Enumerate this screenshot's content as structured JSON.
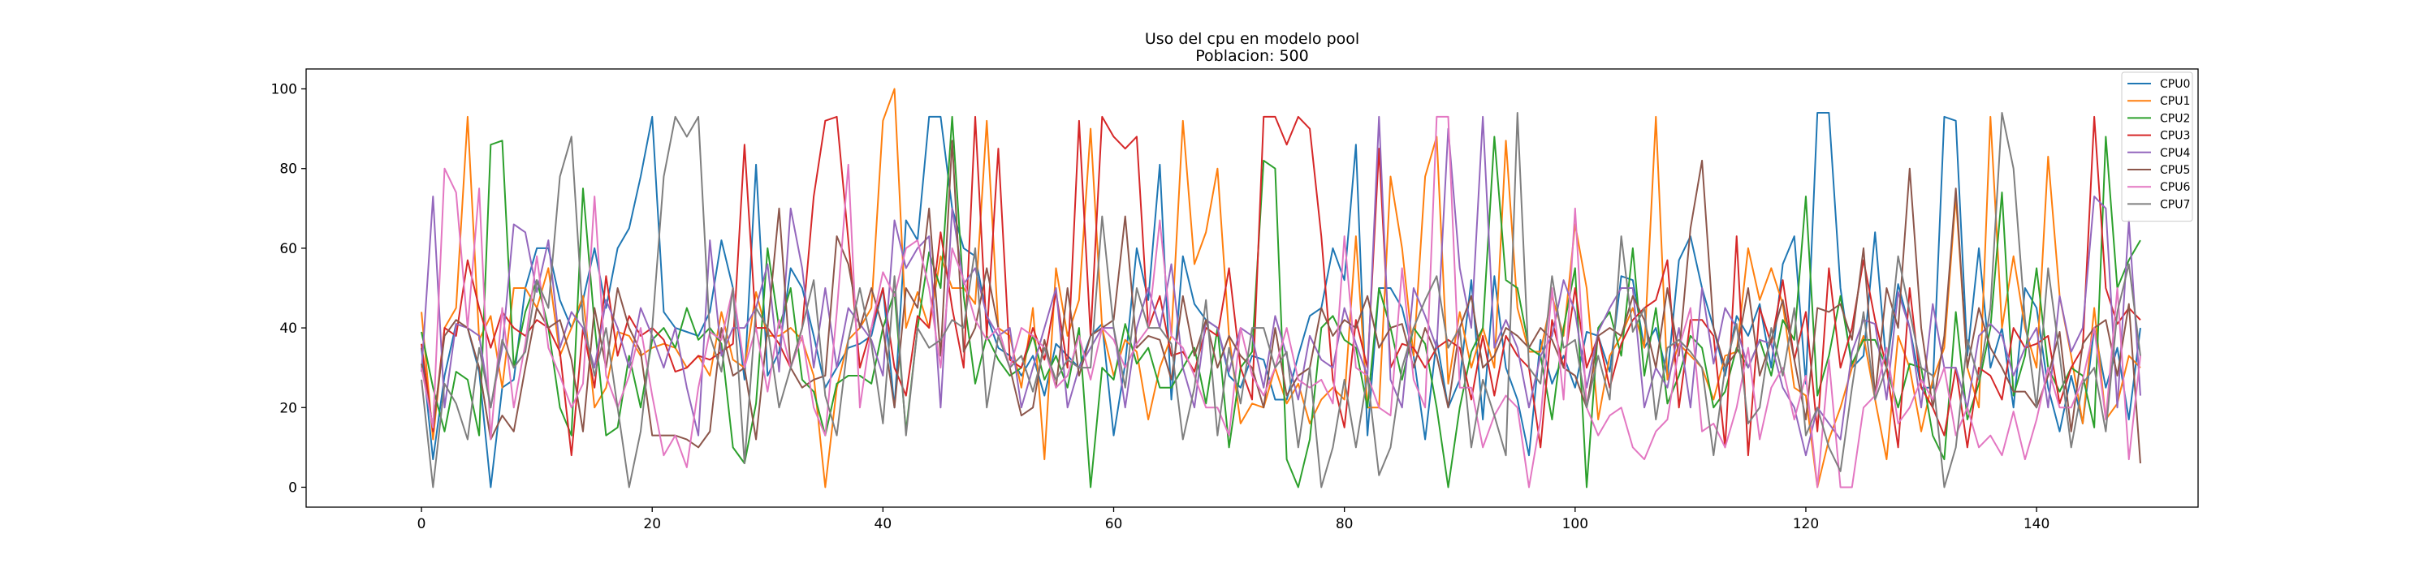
{
  "chart_data": {
    "type": "line",
    "title": "Uso del cpu en modelo pool",
    "subtitle": "Poblacion: 500",
    "xlabel": "",
    "ylabel": "",
    "xlim": [
      -10,
      154
    ],
    "ylim": [
      -5,
      105
    ],
    "xticks": [
      0,
      20,
      40,
      60,
      80,
      100,
      120,
      140
    ],
    "yticks": [
      0,
      20,
      40,
      60,
      80,
      100
    ],
    "grid": false,
    "legend_position": "top-right",
    "series": [
      {
        "name": "CPU0",
        "color": "#1f77b4",
        "values": [
          35,
          7,
          28,
          41,
          40,
          29,
          0,
          25,
          27,
          50,
          60,
          60,
          47,
          40,
          47,
          60,
          45,
          60,
          65,
          78,
          93,
          44,
          40,
          39,
          38,
          44,
          62,
          50,
          27,
          81,
          28,
          34,
          55,
          50,
          38,
          25,
          30,
          35,
          36,
          38,
          50,
          20,
          67,
          62,
          93,
          93,
          70,
          60,
          58,
          43,
          35,
          33,
          28,
          33,
          23,
          36,
          33,
          30,
          38,
          41,
          13,
          31,
          60,
          47,
          81,
          22,
          58,
          46,
          42,
          40,
          28,
          25,
          33,
          32,
          22,
          22,
          33,
          43,
          45,
          60,
          52,
          86,
          13,
          50,
          50,
          45,
          33,
          12,
          37,
          20,
          27,
          52,
          17,
          53,
          30,
          22,
          8,
          37,
          26,
          33,
          25,
          39,
          38,
          29,
          53,
          52,
          35,
          40,
          28,
          57,
          63,
          50,
          40,
          28,
          43,
          38,
          46,
          30,
          56,
          63,
          26,
          94,
          94,
          50,
          30,
          33,
          64,
          30,
          51,
          40,
          25,
          25,
          93,
          92,
          33,
          60,
          30,
          40,
          20,
          50,
          45,
          25,
          14,
          28,
          16,
          40,
          25,
          35,
          17,
          40
        ]
      },
      {
        "name": "CPU1",
        "color": "#ff7f0e",
        "values": [
          44,
          12,
          40,
          45,
          93,
          37,
          43,
          25,
          50,
          50,
          45,
          55,
          33,
          40,
          48,
          20,
          25,
          39,
          38,
          33,
          35,
          36,
          35,
          30,
          33,
          28,
          44,
          32,
          30,
          49,
          38,
          38,
          40,
          37,
          28,
          0,
          25,
          37,
          40,
          45,
          92,
          100,
          40,
          49,
          40,
          58,
          50,
          50,
          46,
          92,
          40,
          38,
          25,
          45,
          7,
          55,
          38,
          47,
          90,
          40,
          28,
          37,
          34,
          17,
          30,
          38,
          92,
          56,
          64,
          80,
          38,
          16,
          21,
          20,
          30,
          21,
          26,
          16,
          22,
          25,
          22,
          63,
          20,
          20,
          78,
          60,
          33,
          78,
          88,
          26,
          44,
          30,
          40,
          30,
          87,
          45,
          34,
          34,
          48,
          38,
          66,
          50,
          17,
          33,
          38,
          45,
          35,
          93,
          27,
          36,
          33,
          30,
          22,
          33,
          34,
          60,
          47,
          55,
          46,
          25,
          23,
          0,
          12,
          20,
          30,
          38,
          22,
          7,
          38,
          30,
          14,
          27,
          35,
          73,
          30,
          20,
          93,
          40,
          58,
          40,
          30,
          83,
          48,
          33,
          16,
          45,
          17,
          21,
          33,
          30
        ]
      },
      {
        "name": "CPU2",
        "color": "#2ca02c",
        "values": [
          39,
          25,
          14,
          29,
          27,
          13,
          86,
          87,
          30,
          44,
          52,
          40,
          20,
          13,
          75,
          41,
          13,
          15,
          33,
          20,
          37,
          40,
          35,
          45,
          37,
          40,
          36,
          10,
          6,
          21,
          60,
          40,
          50,
          27,
          24,
          13,
          26,
          28,
          28,
          26,
          40,
          49,
          14,
          40,
          59,
          50,
          93,
          48,
          26,
          38,
          32,
          28,
          30,
          38,
          27,
          33,
          25,
          40,
          0,
          30,
          27,
          41,
          31,
          35,
          25,
          25,
          30,
          35,
          21,
          40,
          10,
          30,
          34,
          82,
          80,
          7,
          0,
          12,
          40,
          43,
          37,
          35,
          20,
          50,
          40,
          27,
          40,
          36,
          20,
          0,
          20,
          34,
          40,
          88,
          52,
          50,
          35,
          33,
          17,
          40,
          55,
          0,
          40,
          44,
          33,
          60,
          28,
          45,
          21,
          28,
          38,
          35,
          20,
          24,
          35,
          30,
          37,
          28,
          42,
          37,
          73,
          23,
          33,
          48,
          31,
          37,
          37,
          30,
          20,
          31,
          30,
          13,
          7,
          44,
          17,
          26,
          40,
          74,
          23,
          33,
          55,
          30,
          24,
          30,
          28,
          15,
          88,
          50,
          57,
          62
        ]
      },
      {
        "name": "CPU3",
        "color": "#d62728",
        "values": [
          36,
          14,
          40,
          38,
          57,
          45,
          35,
          44,
          40,
          38,
          42,
          40,
          34,
          8,
          40,
          25,
          53,
          33,
          43,
          38,
          40,
          37,
          29,
          30,
          33,
          32,
          34,
          36,
          86,
          40,
          40,
          36,
          30,
          40,
          73,
          92,
          93,
          62,
          30,
          40,
          50,
          30,
          23,
          43,
          40,
          64,
          45,
          30,
          93,
          38,
          85,
          32,
          30,
          40,
          32,
          49,
          30,
          92,
          38,
          93,
          88,
          85,
          88,
          40,
          48,
          33,
          34,
          29,
          40,
          38,
          55,
          30,
          22,
          93,
          93,
          86,
          93,
          90,
          63,
          27,
          15,
          42,
          30,
          85,
          30,
          36,
          35,
          30,
          35,
          37,
          35,
          22,
          38,
          23,
          38,
          33,
          30,
          10,
          42,
          30,
          50,
          30,
          38,
          25,
          36,
          42,
          45,
          47,
          57,
          20,
          42,
          42,
          38,
          10,
          63,
          8,
          45,
          36,
          52,
          32,
          44,
          14,
          55,
          30,
          40,
          57,
          42,
          30,
          10,
          50,
          25,
          20,
          13,
          30,
          10,
          30,
          28,
          22,
          40,
          35,
          36,
          38,
          21,
          30,
          35,
          93,
          50,
          41,
          45,
          42
        ]
      },
      {
        "name": "CPU4",
        "color": "#9467bd",
        "values": [
          29,
          73,
          20,
          41,
          40,
          38,
          20,
          35,
          66,
          64,
          49,
          62,
          35,
          44,
          40,
          30,
          47,
          40,
          30,
          45,
          38,
          30,
          40,
          25,
          13,
          62,
          33,
          40,
          40,
          45,
          56,
          29,
          70,
          55,
          30,
          50,
          30,
          45,
          41,
          37,
          28,
          67,
          55,
          60,
          63,
          20,
          70,
          51,
          55,
          43,
          38,
          40,
          20,
          30,
          40,
          50,
          20,
          30,
          35,
          40,
          40,
          20,
          40,
          50,
          40,
          56,
          30,
          20,
          42,
          40,
          29,
          40,
          38,
          25,
          43,
          33,
          22,
          38,
          32,
          30,
          45,
          36,
          28,
          93,
          27,
          20,
          50,
          43,
          35,
          90,
          55,
          40,
          93,
          35,
          42,
          35,
          20,
          33,
          38,
          52,
          44,
          25,
          39,
          45,
          50,
          50,
          20,
          30,
          25,
          40,
          20,
          50,
          31,
          45,
          40,
          30,
          37,
          36,
          25,
          20,
          8,
          20,
          16,
          12,
          34,
          42,
          41,
          22,
          49,
          40,
          20,
          46,
          30,
          30,
          20,
          38,
          41,
          38,
          28,
          35,
          40,
          20,
          48,
          34,
          40,
          73,
          70,
          20,
          67,
          23
        ]
      },
      {
        "name": "CPU5",
        "color": "#8c564b",
        "values": [
          31,
          15,
          38,
          42,
          40,
          30,
          12,
          18,
          14,
          30,
          45,
          40,
          42,
          32,
          14,
          45,
          30,
          50,
          40,
          34,
          13,
          13,
          13,
          12,
          10,
          14,
          40,
          28,
          30,
          12,
          40,
          70,
          30,
          25,
          27,
          28,
          63,
          56,
          40,
          50,
          40,
          20,
          50,
          45,
          70,
          33,
          87,
          34,
          40,
          55,
          40,
          30,
          18,
          20,
          37,
          25,
          50,
          28,
          38,
          40,
          42,
          68,
          35,
          38,
          37,
          27,
          48,
          33,
          42,
          30,
          38,
          33,
          30,
          20,
          40,
          23,
          28,
          30,
          45,
          38,
          42,
          40,
          48,
          35,
          40,
          41,
          30,
          40,
          33,
          20,
          40,
          48,
          30,
          33,
          40,
          38,
          35,
          40,
          37,
          30,
          28,
          20,
          38,
          40,
          38,
          48,
          42,
          30,
          50,
          33,
          65,
          82,
          40,
          30,
          34,
          50,
          28,
          37,
          47,
          32,
          17,
          45,
          44,
          46,
          37,
          60,
          23,
          50,
          40,
          80,
          40,
          20,
          38,
          75,
          30,
          45,
          35,
          30,
          24,
          24,
          20,
          28,
          39,
          14,
          36,
          40,
          42,
          28,
          46,
          6
        ]
      },
      {
        "name": "CPU6",
        "color": "#e377c2",
        "values": [
          30,
          15,
          80,
          74,
          40,
          75,
          12,
          45,
          20,
          36,
          58,
          35,
          28,
          20,
          26,
          73,
          28,
          20,
          28,
          40,
          23,
          8,
          13,
          5,
          25,
          39,
          37,
          50,
          30,
          40,
          24,
          42,
          30,
          38,
          20,
          13,
          44,
          81,
          20,
          40,
          54,
          48,
          60,
          62,
          50,
          30,
          60,
          52,
          42,
          37,
          40,
          30,
          40,
          38,
          35,
          25,
          28,
          38,
          27,
          40,
          37,
          30,
          36,
          40,
          67,
          38,
          35,
          28,
          20,
          20,
          13,
          40,
          28,
          23,
          30,
          40,
          27,
          25,
          27,
          21,
          63,
          30,
          28,
          20,
          18,
          55,
          27,
          20,
          93,
          93,
          25,
          25,
          10,
          18,
          23,
          20,
          0,
          17,
          50,
          22,
          70,
          20,
          13,
          18,
          20,
          10,
          7,
          14,
          17,
          35,
          45,
          14,
          16,
          10,
          20,
          35,
          12,
          25,
          30,
          17,
          28,
          0,
          32,
          0,
          0,
          20,
          23,
          35,
          16,
          20,
          27,
          22,
          30,
          13,
          20,
          10,
          13,
          8,
          19,
          7,
          17,
          30,
          20,
          20,
          27,
          40,
          17,
          50,
          7,
          33
        ]
      },
      {
        "name": "CPU7",
        "color": "#7f7f7f",
        "values": [
          27,
          0,
          26,
          21,
          12,
          35,
          20,
          37,
          30,
          34,
          52,
          45,
          78,
          88,
          42,
          28,
          40,
          20,
          0,
          14,
          40,
          78,
          93,
          88,
          93,
          38,
          29,
          50,
          6,
          45,
          40,
          20,
          30,
          40,
          52,
          23,
          13,
          37,
          50,
          36,
          16,
          53,
          13,
          40,
          35,
          37,
          42,
          40,
          60,
          20,
          38,
          30,
          33,
          24,
          35,
          27,
          32,
          30,
          30,
          68,
          40,
          25,
          50,
          40,
          40,
          36,
          12,
          25,
          47,
          13,
          35,
          21,
          40,
          40,
          30,
          34,
          10,
          30,
          0,
          10,
          27,
          10,
          28,
          3,
          10,
          30,
          40,
          47,
          53,
          35,
          40,
          10,
          27,
          18,
          8,
          94,
          30,
          26,
          53,
          35,
          37,
          20,
          33,
          22,
          63,
          39,
          45,
          17,
          35,
          37,
          34,
          30,
          8,
          30,
          41,
          16,
          20,
          40,
          28,
          45,
          13,
          20,
          10,
          4,
          25,
          44,
          22,
          30,
          58,
          44,
          30,
          28,
          0,
          10,
          37,
          27,
          45,
          94,
          80,
          42,
          20,
          55,
          33,
          10,
          26,
          30,
          14,
          44,
          56,
          33
        ]
      }
    ]
  }
}
